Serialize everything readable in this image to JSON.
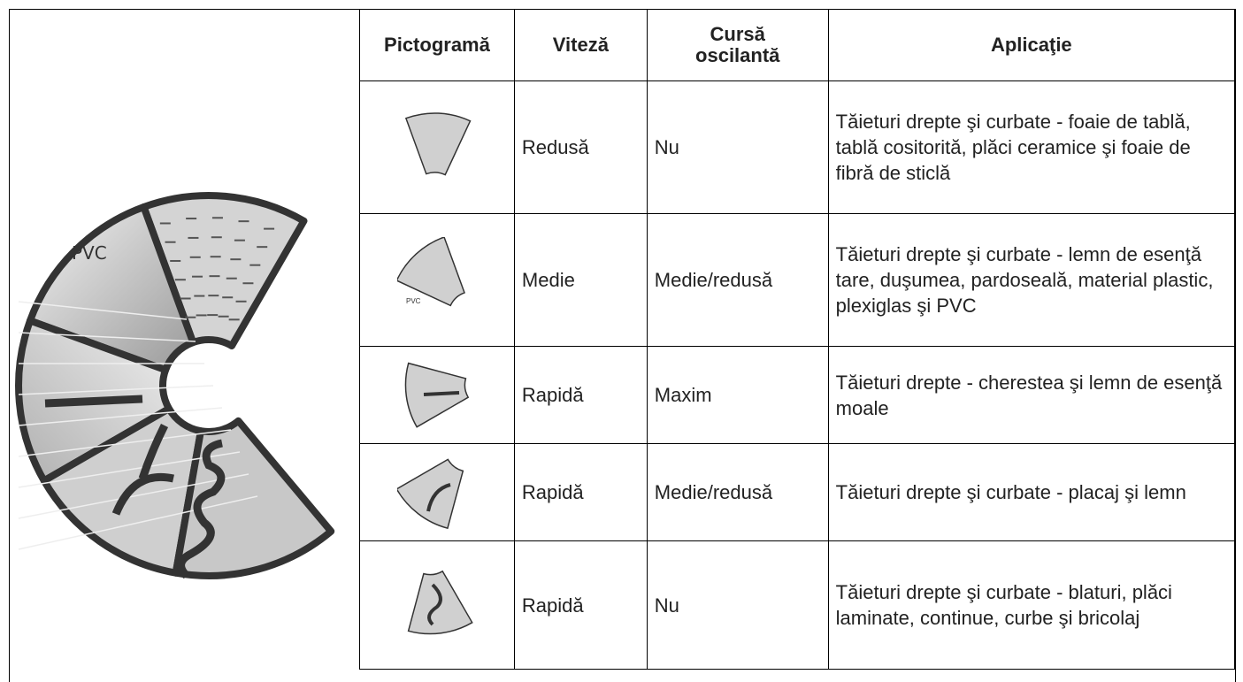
{
  "dial": {
    "label": "PVC"
  },
  "table": {
    "header": [
      "Pictogramă",
      "Viteză",
      "Cursă\noscilantă",
      "Aplicaţie"
    ],
    "rows": [
      [
        "Redusă",
        "Nu",
        "Tăieturi drepte şi curbate - foaie de tablă, tablă cositorită, plăci ceramice şi foaie de fibră de sticlă"
      ],
      [
        "Medie",
        "Medie/redusă",
        "Tăieturi drepte şi curbate - lemn de esenţă tare, duşumea, pardoseală, material plastic, plexiglas şi PVC"
      ],
      [
        "Rapidă",
        "Maxim",
        "Tăieturi drepte - cherestea şi lemn de esenţă moale"
      ],
      [
        "Rapidă",
        "Medie/redusă",
        "Tăieturi drepte şi curbate - placaj şi lemn"
      ],
      [
        "Rapidă",
        "Nu",
        "Tăieturi drepte şi curbate - blaturi, plăci laminate, continue, curbe şi bricolaj"
      ]
    ]
  }
}
